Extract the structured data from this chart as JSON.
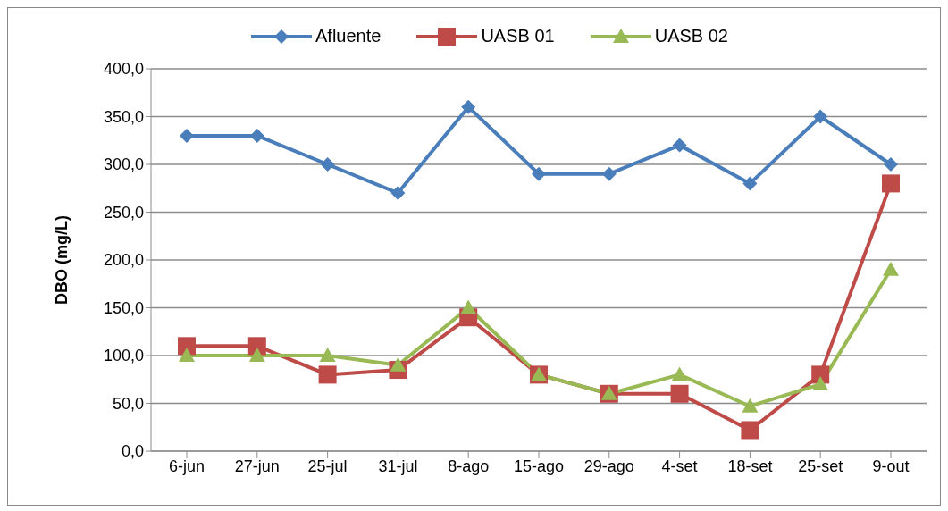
{
  "chart_data": {
    "type": "line",
    "ylabel": "DBO (mg/L)",
    "categories": [
      "6-jun",
      "27-jun",
      "25-jul",
      "31-jul",
      "8-ago",
      "15-ago",
      "29-ago",
      "4-set",
      "18-set",
      "25-set",
      "9-out"
    ],
    "series": [
      {
        "name": "Afluente",
        "color": "#4a7ebb",
        "marker": "diamond",
        "values": [
          330,
          330,
          300,
          270,
          360,
          290,
          290,
          320,
          280,
          350,
          300
        ]
      },
      {
        "name": "UASB 01",
        "color": "#be4b48",
        "marker": "square",
        "values": [
          110,
          110,
          80,
          85,
          140,
          80,
          60,
          60,
          22,
          80,
          280
        ]
      },
      {
        "name": "UASB 02",
        "color": "#98b954",
        "marker": "triangle",
        "values": [
          100,
          100,
          100,
          90,
          150,
          80,
          60,
          80,
          47,
          70,
          190
        ]
      }
    ],
    "ylim": [
      0,
      400
    ],
    "yticks": [
      {
        "value": 0,
        "label": "0,0"
      },
      {
        "value": 50,
        "label": "50,0"
      },
      {
        "value": 100,
        "label": "100,0"
      },
      {
        "value": 150,
        "label": "150,0"
      },
      {
        "value": 200,
        "label": "200,0"
      },
      {
        "value": 250,
        "label": "250,0"
      },
      {
        "value": 300,
        "label": "300,0"
      },
      {
        "value": 350,
        "label": "350,0"
      },
      {
        "value": 400,
        "label": "400,0"
      }
    ],
    "grid": "y",
    "legend": "top",
    "line_style": "solid"
  }
}
